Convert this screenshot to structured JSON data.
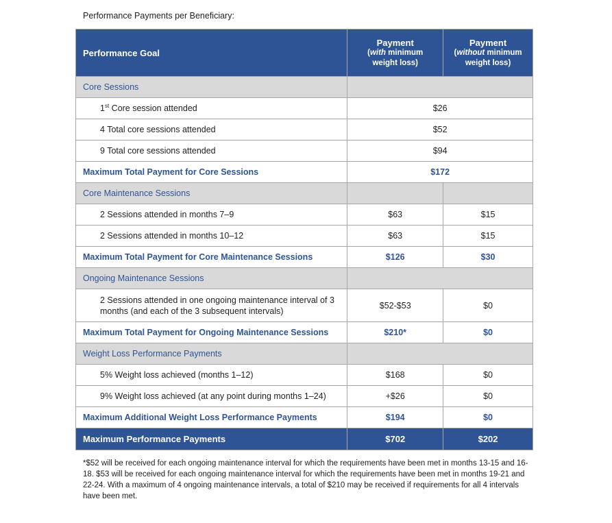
{
  "caption": "Performance Payments per Beneficiary:",
  "header": {
    "goal": "Performance Goal",
    "pay_title": "Payment",
    "with_em": "with",
    "with_rest": " minimum weight loss)",
    "without_em": "without",
    "without_rest": " minimum weight loss)",
    "open_paren": "("
  },
  "core": {
    "title": "Core Sessions",
    "r1_num": "1",
    "r1_sup": "st",
    "r1_rest": " Core session attended",
    "r1_v": "$26",
    "r2": "4 Total core sessions attended",
    "r2_v": "$52",
    "r3": "9 Total core sessions attended",
    "r3_v": "$94",
    "max": "Maximum Total Payment for Core Sessions",
    "max_v": "$172"
  },
  "core_maint": {
    "title": "Core Maintenance Sessions",
    "r1": "2 Sessions attended in months 7–9",
    "r1_a": "$63",
    "r1_b": "$15",
    "r2": "2 Sessions attended in months 10–12",
    "r2_a": "$63",
    "r2_b": "$15",
    "max": "Maximum Total Payment for Core Maintenance Sessions",
    "max_a": "$126",
    "max_b": "$30"
  },
  "ongoing": {
    "title": "Ongoing Maintenance Sessions",
    "r1": "2 Sessions attended in one ongoing maintenance interval of 3 months (and each of the 3 subsequent intervals)",
    "r1_a": "$52-$53",
    "r1_b": "$0",
    "max": "Maximum Total Payment for Ongoing Maintenance Sessions",
    "max_a": "$210*",
    "max_b": "$0"
  },
  "weight": {
    "title": "Weight Loss Performance Payments",
    "r1": "5% Weight loss achieved (months 1–12)",
    "r1_a": "$168",
    "r1_b": "$0",
    "r2": "9% Weight loss achieved (at any point during months 1–24)",
    "r2_a": "+$26",
    "r2_b": "$0",
    "max": "Maximum Additional Weight Loss Performance Payments",
    "max_a": "$194",
    "max_b": "$0"
  },
  "total": {
    "label": "Maximum Performance Payments",
    "a": "$702",
    "b": "$202"
  },
  "footnote": "*$52 will be received for each ongoing maintenance interval for which the requirements have been met in months 13-15 and 16-18. $53 will be received for each ongoing maintenance interval for which the requirements have been met in months 19-21 and 22-24. With a maximum of 4 ongoing maintenance intervals, a total of $210 may be received if requirements for all 4 intervals have been met."
}
